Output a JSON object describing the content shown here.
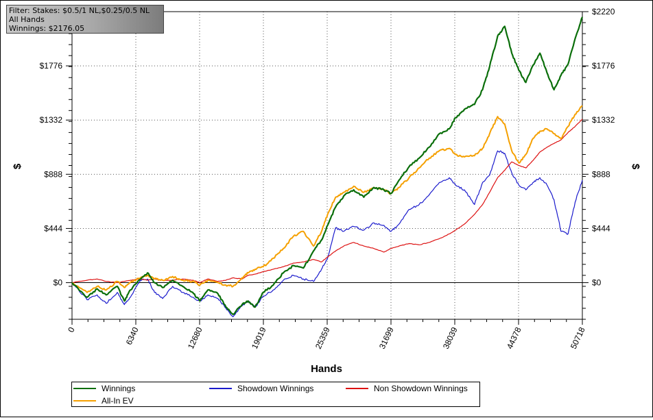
{
  "info": {
    "filter": "Filter: Stakes: $0.5/1 NL,$0.25/0.5 NL",
    "hands": "All Hands",
    "winnings": "Winnings: $2176.05"
  },
  "chart_data": {
    "type": "line",
    "xlabel": "Hands",
    "ylabel": "$",
    "xlim": [
      0,
      50718
    ],
    "ylim": [
      -300,
      2220
    ],
    "x_ticks": [
      "0",
      "6340",
      "12680",
      "19019",
      "25359",
      "31699",
      "38039",
      "44378",
      "50718"
    ],
    "y_ticks": [
      "$0",
      "$444",
      "$888",
      "$1332",
      "$1776",
      "$2220"
    ],
    "y_tick_values": [
      0,
      444,
      888,
      1332,
      1776,
      2220
    ],
    "grid": true,
    "legend_position": "bottom",
    "series": [
      {
        "name": "Winnings",
        "color": "#0a6e0a",
        "x": [
          0,
          1500,
          2500,
          3400,
          4500,
          5200,
          5800,
          6800,
          7500,
          8200,
          9000,
          10000,
          11000,
          12000,
          12700,
          13500,
          14500,
          15300,
          16000,
          16900,
          17500,
          18200,
          19000,
          20000,
          21000,
          22000,
          23000,
          24000,
          24800,
          25400,
          26200,
          27000,
          28000,
          29000,
          30000,
          31000,
          31700,
          32500,
          33500,
          34500,
          35500,
          36500,
          37500,
          38100,
          39000,
          40000,
          40800,
          41500,
          42300,
          43000,
          43700,
          44400,
          45100,
          45800,
          46500,
          47200,
          47900,
          48600,
          49300,
          50000,
          50718
        ],
        "y": [
          0,
          -120,
          -50,
          -100,
          -30,
          -150,
          -60,
          30,
          80,
          0,
          -40,
          20,
          -30,
          -80,
          -150,
          -60,
          -90,
          -200,
          -260,
          -180,
          -150,
          -200,
          -80,
          -20,
          80,
          140,
          120,
          260,
          350,
          470,
          620,
          710,
          760,
          700,
          780,
          760,
          730,
          840,
          950,
          1020,
          1110,
          1220,
          1260,
          1350,
          1420,
          1460,
          1580,
          1770,
          2020,
          2100,
          1880,
          1740,
          1640,
          1780,
          1880,
          1720,
          1580,
          1700,
          1790,
          2000,
          2176
        ]
      },
      {
        "name": "Showdown Winnings",
        "color": "#1a1acc",
        "x": [
          0,
          1500,
          2500,
          3400,
          4500,
          5200,
          5800,
          6800,
          7500,
          8200,
          9000,
          10000,
          11000,
          12000,
          12700,
          13500,
          14500,
          15300,
          16000,
          16900,
          17500,
          18200,
          19000,
          20000,
          21000,
          22000,
          23000,
          24000,
          24800,
          25400,
          26200,
          27000,
          28000,
          29000,
          30000,
          31000,
          31700,
          32500,
          33500,
          34500,
          35500,
          36500,
          37500,
          38100,
          39000,
          40000,
          40800,
          41500,
          42300,
          43000,
          43700,
          44400,
          45100,
          45800,
          46500,
          47200,
          47900,
          48600,
          49300,
          50000,
          50718
        ],
        "y": [
          0,
          -140,
          -100,
          -170,
          -80,
          -180,
          -120,
          20,
          30,
          -80,
          -130,
          -30,
          -80,
          -120,
          -150,
          -100,
          -130,
          -210,
          -280,
          -190,
          -150,
          -200,
          -110,
          -60,
          20,
          60,
          30,
          10,
          110,
          200,
          450,
          420,
          460,
          430,
          490,
          470,
          420,
          480,
          600,
          640,
          720,
          820,
          860,
          800,
          760,
          640,
          820,
          880,
          1080,
          1060,
          900,
          800,
          760,
          820,
          860,
          800,
          680,
          420,
          400,
          660,
          840
        ]
      },
      {
        "name": "Non Showdown Winnings",
        "color": "#dd1111",
        "x": [
          0,
          1500,
          2500,
          3400,
          4500,
          5200,
          5800,
          6800,
          7500,
          8200,
          9000,
          10000,
          11000,
          12000,
          12700,
          13500,
          14500,
          15300,
          16000,
          16900,
          17500,
          18200,
          19000,
          20000,
          21000,
          22000,
          23000,
          24000,
          24800,
          25400,
          26200,
          27000,
          28000,
          29000,
          30000,
          31000,
          31700,
          32500,
          33500,
          34500,
          35500,
          36500,
          37500,
          38100,
          39000,
          40000,
          40800,
          41500,
          42300,
          43000,
          43700,
          44400,
          45100,
          45800,
          46500,
          47200,
          47900,
          48600,
          49300,
          50000,
          50718
        ],
        "y": [
          0,
          20,
          30,
          10,
          0,
          10,
          20,
          30,
          20,
          30,
          20,
          20,
          30,
          20,
          0,
          30,
          10,
          20,
          40,
          30,
          60,
          70,
          90,
          110,
          130,
          160,
          170,
          190,
          170,
          210,
          260,
          300,
          330,
          300,
          280,
          250,
          280,
          300,
          320,
          310,
          330,
          360,
          400,
          430,
          480,
          560,
          640,
          740,
          860,
          920,
          990,
          960,
          940,
          1000,
          1070,
          1110,
          1140,
          1170,
          1230,
          1280,
          1340
        ]
      },
      {
        "name": "All-In EV",
        "color": "#f5a000",
        "x": [
          0,
          1500,
          2500,
          3400,
          4500,
          5200,
          5800,
          6800,
          7500,
          8200,
          9000,
          10000,
          11000,
          12000,
          12700,
          13500,
          14500,
          15300,
          16000,
          16900,
          17500,
          18200,
          19000,
          20000,
          21000,
          22000,
          23000,
          24000,
          24800,
          25400,
          26200,
          27000,
          28000,
          29000,
          30000,
          31000,
          31700,
          32500,
          33500,
          34500,
          35500,
          36500,
          37500,
          38100,
          39000,
          40000,
          40800,
          41500,
          42300,
          43000,
          43700,
          44400,
          45100,
          45800,
          46500,
          47200,
          47900,
          48600,
          49300,
          50000,
          50718
        ],
        "y": [
          0,
          -80,
          -30,
          -60,
          10,
          -40,
          0,
          40,
          60,
          30,
          20,
          50,
          20,
          10,
          -20,
          20,
          0,
          -20,
          -30,
          40,
          80,
          110,
          130,
          200,
          280,
          380,
          420,
          300,
          420,
          560,
          700,
          740,
          790,
          740,
          780,
          760,
          730,
          780,
          860,
          940,
          1020,
          1080,
          1100,
          1050,
          1030,
          1040,
          1100,
          1220,
          1360,
          1300,
          1080,
          980,
          1050,
          1180,
          1240,
          1260,
          1220,
          1180,
          1280,
          1380,
          1450
        ]
      }
    ]
  }
}
